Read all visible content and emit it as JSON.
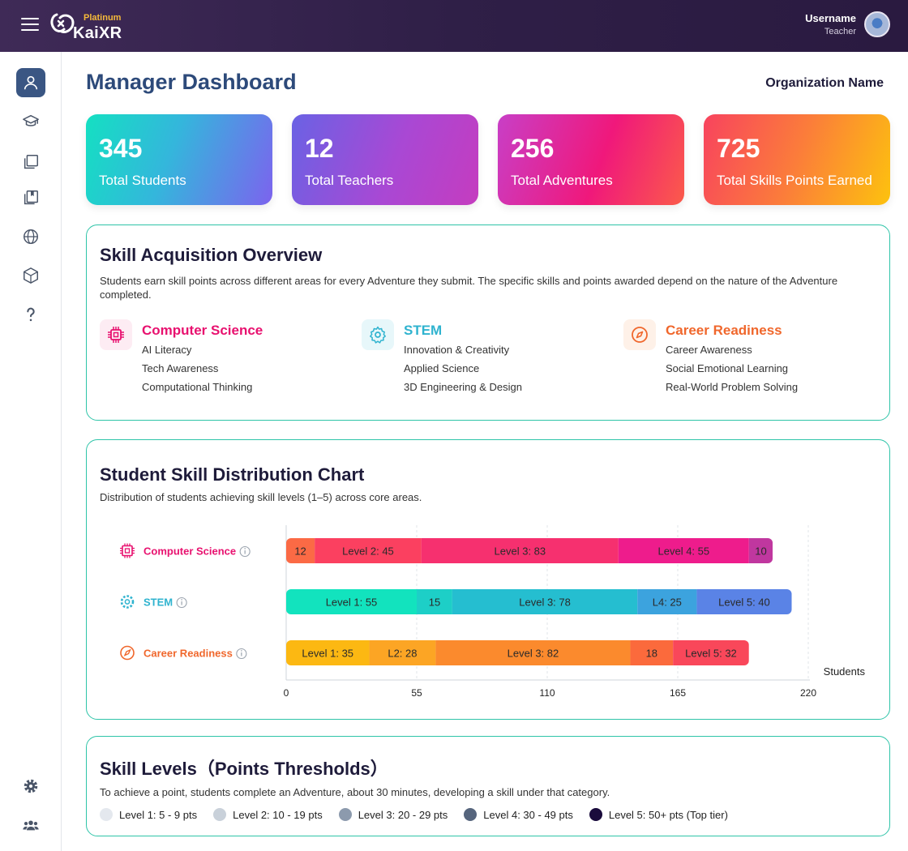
{
  "header": {
    "brand": "KaiXR",
    "tier": "Platinum",
    "username": "Username",
    "role": "Teacher"
  },
  "sidebar": {
    "items": [
      {
        "icon": "user-icon",
        "active": true
      },
      {
        "icon": "graduation-cap-icon"
      },
      {
        "icon": "copy-icon"
      },
      {
        "icon": "bookmark-book-icon"
      },
      {
        "icon": "globe-icon"
      },
      {
        "icon": "cube-icon"
      },
      {
        "icon": "help-icon"
      }
    ],
    "bottom_items": [
      {
        "icon": "gear-icon"
      },
      {
        "icon": "users-icon"
      }
    ]
  },
  "page": {
    "title": "Manager Dashboard",
    "org_name": "Organization Name"
  },
  "stats": [
    {
      "value": "345",
      "label": "Total Students"
    },
    {
      "value": "12",
      "label": "Total Teachers"
    },
    {
      "value": "256",
      "label": "Total Adventures"
    },
    {
      "value": "725",
      "label": "Total Skills Points Earned"
    }
  ],
  "overview": {
    "title": "Skill Acquisition Overview",
    "description": "Students earn skill points across different areas for every Adventure they submit. The specific skills and points awarded depend on the nature of the Adventure completed.",
    "categories": [
      {
        "name": "Computer Science",
        "color": "#e8116f",
        "icon": "chip-icon",
        "skills": [
          "AI Literacy",
          "Tech Awareness",
          "Computational Thinking"
        ]
      },
      {
        "name": "STEM",
        "color": "#2fb3cf",
        "icon": "gear-icon",
        "skills": [
          "Innovation & Creativity",
          "Applied Science",
          "3D Engineering & Design"
        ]
      },
      {
        "name": "Career Readiness",
        "color": "#f0672c",
        "icon": "compass-icon",
        "skills": [
          "Career Awareness",
          "Social Emotional Learning",
          "Real-World Problem Solving"
        ]
      }
    ]
  },
  "distribution": {
    "title": "Student Skill Distribution Chart",
    "description": "Distribution of students achieving skill levels (1–5) across core areas."
  },
  "chart_data": {
    "type": "bar",
    "orientation": "horizontal",
    "stacked": true,
    "categories": [
      "Computer Science",
      "STEM",
      "Career Readiness"
    ],
    "category_colors": [
      "#e8116f",
      "#2fb3cf",
      "#f0672c"
    ],
    "xlabel": "Students",
    "xlim": [
      0,
      220
    ],
    "xticks": [
      0,
      55,
      110,
      165,
      220
    ],
    "grid": true,
    "series": [
      {
        "category": "Computer Science",
        "segments": [
          {
            "value": 12,
            "label": "12",
            "color": "#fb6a45"
          },
          {
            "value": 45,
            "label": "Level 2: 45",
            "color": "#fb4060"
          },
          {
            "value": 83,
            "label": "Level 3: 83",
            "color": "#f6306f"
          },
          {
            "value": 55,
            "label": "Level 4: 55",
            "color": "#ee1c8c"
          },
          {
            "value": 10,
            "label": "10",
            "color": "#c0379f"
          }
        ]
      },
      {
        "category": "STEM",
        "segments": [
          {
            "value": 55,
            "label": "Level 1: 55",
            "color": "#12e3be"
          },
          {
            "value": 15,
            "label": "15",
            "color": "#1dcfc7"
          },
          {
            "value": 78,
            "label": "Level 3: 78",
            "color": "#25bed0"
          },
          {
            "value": 25,
            "label": "L4: 25",
            "color": "#3ca3de"
          },
          {
            "value": 40,
            "label": "Level 5: 40",
            "color": "#5a83e6"
          }
        ]
      },
      {
        "category": "Career Readiness",
        "segments": [
          {
            "value": 35,
            "label": "Level 1: 35",
            "color": "#fcb812"
          },
          {
            "value": 28,
            "label": "L2: 28",
            "color": "#fca524"
          },
          {
            "value": 82,
            "label": "Level 3: 82",
            "color": "#fb8a2d"
          },
          {
            "value": 18,
            "label": "18",
            "color": "#fb6a3c"
          },
          {
            "value": 32,
            "label": "Level 5: 32",
            "color": "#f9475a"
          }
        ]
      }
    ]
  },
  "levels": {
    "title": "Skill Levels（Points Thresholds）",
    "description": "To achieve a point, students complete an Adventure, about 30 minutes, developing a skill under that category.",
    "items": [
      {
        "label": "Level 1: 5 - 9 pts",
        "color": "#e4e8ee"
      },
      {
        "label": "Level 2: 10 - 19 pts",
        "color": "#c9d1da"
      },
      {
        "label": "Level 3: 20 - 29 pts",
        "color": "#8c9aad"
      },
      {
        "label": "Level 4: 30 - 49 pts",
        "color": "#56657d"
      },
      {
        "label": "Level 5: 50+ pts (Top tier)",
        "color": "#1a0b3c"
      }
    ]
  }
}
